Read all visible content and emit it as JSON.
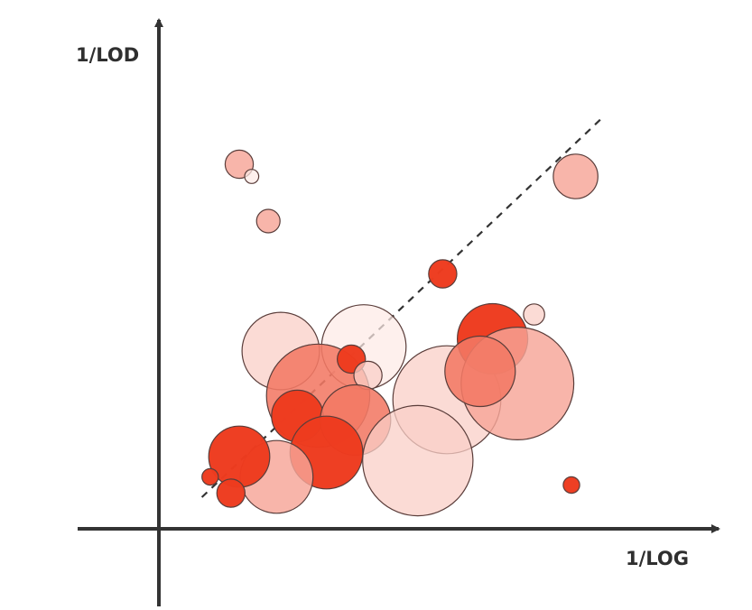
{
  "chart_data": {
    "type": "scatter",
    "title": "",
    "xlabel": "1/LOG",
    "ylabel": "1/LOD",
    "grid": false,
    "legend": null,
    "ticks": false,
    "colors": {
      "dark": "#ee3b1f",
      "medium": "#f27964",
      "light": "#f6a597",
      "pale": "#f9cfc7",
      "faint": "#fdeae6",
      "stroke": "#5a3d3a",
      "axis": "#333333",
      "trend": "#333333"
    },
    "xlim": [
      0,
      10
    ],
    "ylim": [
      0,
      10
    ],
    "trendline": {
      "style": "dashed",
      "x": [
        0.6,
        10.3
      ],
      "y": [
        0.6,
        10.0
      ]
    },
    "points": [
      {
        "x": 1.5,
        "y": 8.8,
        "size": 0.6,
        "shade": "light"
      },
      {
        "x": 1.8,
        "y": 8.5,
        "size": 0.3,
        "shade": "faint"
      },
      {
        "x": 2.2,
        "y": 7.4,
        "size": 0.5,
        "shade": "light"
      },
      {
        "x": 6.4,
        "y": 6.1,
        "size": 0.6,
        "shade": "dark"
      },
      {
        "x": 9.6,
        "y": 8.5,
        "size": 0.95,
        "shade": "light"
      },
      {
        "x": 8.6,
        "y": 5.1,
        "size": 0.45,
        "shade": "pale"
      },
      {
        "x": 2.5,
        "y": 4.2,
        "size": 1.65,
        "shade": "pale"
      },
      {
        "x": 4.5,
        "y": 4.3,
        "size": 1.8,
        "shade": "faint"
      },
      {
        "x": 3.4,
        "y": 3.1,
        "size": 2.2,
        "shade": "medium"
      },
      {
        "x": 6.5,
        "y": 3.0,
        "size": 2.3,
        "shade": "pale"
      },
      {
        "x": 7.6,
        "y": 4.5,
        "size": 1.5,
        "shade": "dark"
      },
      {
        "x": 8.2,
        "y": 3.4,
        "size": 2.4,
        "shade": "light"
      },
      {
        "x": 7.3,
        "y": 3.7,
        "size": 1.5,
        "shade": "medium"
      },
      {
        "x": 4.2,
        "y": 4.0,
        "size": 0.6,
        "shade": "dark"
      },
      {
        "x": 4.6,
        "y": 3.6,
        "size": 0.6,
        "shade": "pale"
      },
      {
        "x": 2.9,
        "y": 2.6,
        "size": 1.1,
        "shade": "dark"
      },
      {
        "x": 4.3,
        "y": 2.5,
        "size": 1.5,
        "shade": "medium"
      },
      {
        "x": 3.6,
        "y": 1.7,
        "size": 1.55,
        "shade": "dark"
      },
      {
        "x": 5.8,
        "y": 1.5,
        "size": 2.35,
        "shade": "pale"
      },
      {
        "x": 2.4,
        "y": 1.1,
        "size": 1.55,
        "shade": "light"
      },
      {
        "x": 1.5,
        "y": 1.6,
        "size": 1.3,
        "shade": "dark"
      },
      {
        "x": 0.8,
        "y": 1.1,
        "size": 0.35,
        "shade": "dark"
      },
      {
        "x": 1.3,
        "y": 0.7,
        "size": 0.6,
        "shade": "dark"
      },
      {
        "x": 9.5,
        "y": 0.9,
        "size": 0.35,
        "shade": "dark"
      }
    ]
  }
}
